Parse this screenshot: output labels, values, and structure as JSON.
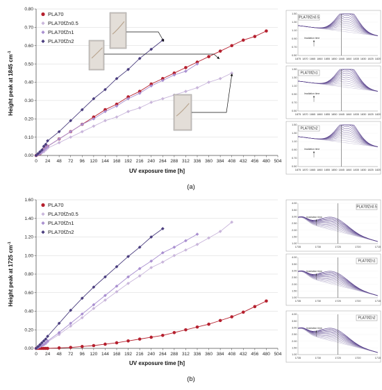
{
  "chart_data": [
    {
      "type": "line",
      "panel_label": "(a)",
      "xlabel": "UV exposure time [h]",
      "ylabel": "Height peak at 1845 cm",
      "ylabel_sup": "-1",
      "xlim": [
        0,
        504
      ],
      "ylim": [
        0,
        0.8
      ],
      "xticks": [
        0,
        24,
        48,
        72,
        96,
        120,
        144,
        168,
        192,
        216,
        240,
        264,
        288,
        312,
        336,
        360,
        384,
        408,
        432,
        456,
        480,
        504
      ],
      "yticks": [
        0.0,
        0.1,
        0.2,
        0.3,
        0.4,
        0.5,
        0.6,
        0.7,
        0.8
      ],
      "ytick_labels": [
        "0.00",
        "0.10",
        "0.20",
        "0.30",
        "0.40",
        "0.50",
        "0.60",
        "0.70",
        "0.80"
      ],
      "legend": "top-left",
      "series": [
        {
          "name": "PLA70",
          "color": "#b5202e",
          "marker": "circle",
          "x": [
            0,
            4,
            8,
            12,
            16,
            20,
            24,
            48,
            72,
            96,
            120,
            144,
            168,
            192,
            216,
            240,
            264,
            288,
            312,
            336,
            360,
            384,
            408,
            432,
            456,
            480
          ],
          "y": [
            0.0,
            0.005,
            0.01,
            0.02,
            0.03,
            0.04,
            0.05,
            0.09,
            0.13,
            0.17,
            0.21,
            0.25,
            0.28,
            0.32,
            0.35,
            0.39,
            0.42,
            0.45,
            0.48,
            0.51,
            0.54,
            0.57,
            0.6,
            0.63,
            0.65,
            0.68
          ]
        },
        {
          "name": "PLA70fZn0.5",
          "color": "#c9b6db",
          "marker": "diamond",
          "x": [
            0,
            4,
            8,
            12,
            16,
            20,
            24,
            48,
            72,
            96,
            120,
            144,
            168,
            192,
            216,
            240,
            264,
            288,
            312,
            336,
            360,
            384,
            408
          ],
          "y": [
            0.0,
            0.005,
            0.01,
            0.015,
            0.02,
            0.03,
            0.04,
            0.07,
            0.1,
            0.13,
            0.16,
            0.19,
            0.21,
            0.24,
            0.26,
            0.29,
            0.31,
            0.33,
            0.35,
            0.37,
            0.4,
            0.42,
            0.45
          ]
        },
        {
          "name": "PLA70fZn1",
          "color": "#a98fd0",
          "marker": "diamond",
          "x": [
            0,
            4,
            8,
            12,
            16,
            20,
            24,
            48,
            72,
            96,
            120,
            144,
            168,
            192,
            216,
            240,
            264,
            288,
            312,
            336
          ],
          "y": [
            0.0,
            0.005,
            0.01,
            0.02,
            0.03,
            0.04,
            0.05,
            0.09,
            0.13,
            0.17,
            0.2,
            0.24,
            0.27,
            0.31,
            0.34,
            0.38,
            0.41,
            0.44,
            0.46,
            0.5
          ]
        },
        {
          "name": "PLA70fZn2",
          "color": "#4a3d7e",
          "marker": "diamond",
          "x": [
            0,
            4,
            8,
            12,
            16,
            20,
            24,
            48,
            72,
            96,
            120,
            144,
            168,
            192,
            216,
            240,
            264
          ],
          "y": [
            0.0,
            0.01,
            0.02,
            0.03,
            0.05,
            0.06,
            0.08,
            0.13,
            0.19,
            0.25,
            0.31,
            0.36,
            0.42,
            0.47,
            0.53,
            0.58,
            0.63
          ]
        }
      ],
      "insets": [
        {
          "label": "PLA70fZn0.5",
          "irradiation": "Irradiation time",
          "yticks": [
            "1.50",
            "1.30",
            "1.10",
            "0.90",
            "0.70",
            "0.50"
          ],
          "xticks": [
            "1875",
            "1870",
            "1865",
            "1860",
            "1855",
            "1850",
            "1845",
            "1840",
            "1835",
            "1830",
            "1825",
            "1820"
          ]
        },
        {
          "label": "PLA70fZn1",
          "irradiation": "Irradiation time",
          "yticks": [
            "1.50",
            "1.30",
            "1.10",
            "0.90",
            "0.70",
            "0.50"
          ],
          "xticks": [
            "1875",
            "1870",
            "1865",
            "1860",
            "1855",
            "1850",
            "1845",
            "1840",
            "1835",
            "1830",
            "1825",
            "1820"
          ]
        },
        {
          "label": "PLA70fZn2",
          "irradiation": "Irradiation time",
          "yticks": [
            "1.50",
            "1.30",
            "1.10",
            "0.90",
            "0.70",
            "0.50"
          ],
          "xticks": [
            "1875",
            "1870",
            "1865",
            "1860",
            "1855",
            "1850",
            "1845",
            "1840",
            "1835",
            "1830",
            "1825",
            "1820"
          ]
        }
      ]
    },
    {
      "type": "line",
      "panel_label": "(b)",
      "xlabel": "UV exposure time [h]",
      "ylabel": "Height peak at 1725 cm",
      "ylabel_sup": "-1",
      "xlim": [
        0,
        504
      ],
      "ylim": [
        0,
        1.6
      ],
      "xticks": [
        0,
        24,
        48,
        72,
        96,
        120,
        144,
        168,
        192,
        216,
        240,
        264,
        288,
        312,
        336,
        360,
        384,
        408,
        432,
        456,
        480,
        504
      ],
      "yticks": [
        0.0,
        0.2,
        0.4,
        0.6,
        0.8,
        1.0,
        1.2,
        1.4,
        1.6
      ],
      "ytick_labels": [
        "0.00",
        "0.20",
        "0.40",
        "0.60",
        "0.80",
        "1.00",
        "1.20",
        "1.40",
        "1.60"
      ],
      "legend": "top-left",
      "series": [
        {
          "name": "PLA70",
          "color": "#b5202e",
          "marker": "circle",
          "x": [
            0,
            4,
            8,
            12,
            16,
            20,
            24,
            48,
            72,
            96,
            120,
            144,
            168,
            192,
            216,
            240,
            264,
            288,
            312,
            336,
            360,
            384,
            408,
            432,
            456,
            480
          ],
          "y": [
            0.0,
            0.0,
            0.0,
            0.0,
            0.0,
            0.0,
            0.0,
            0.005,
            0.01,
            0.02,
            0.03,
            0.045,
            0.06,
            0.08,
            0.1,
            0.12,
            0.14,
            0.17,
            0.2,
            0.23,
            0.26,
            0.3,
            0.34,
            0.39,
            0.45,
            0.51
          ]
        },
        {
          "name": "PLA70fZn0.5",
          "color": "#c9b6db",
          "marker": "diamond",
          "x": [
            0,
            4,
            8,
            12,
            16,
            20,
            24,
            48,
            72,
            96,
            120,
            144,
            168,
            192,
            216,
            240,
            264,
            288,
            312,
            336,
            360,
            384,
            408
          ],
          "y": [
            0.0,
            0.01,
            0.02,
            0.03,
            0.04,
            0.05,
            0.07,
            0.15,
            0.24,
            0.33,
            0.43,
            0.52,
            0.61,
            0.7,
            0.78,
            0.87,
            0.93,
            1.0,
            1.06,
            1.12,
            1.19,
            1.26,
            1.36
          ]
        },
        {
          "name": "PLA70fZn1",
          "color": "#a98fd0",
          "marker": "diamond",
          "x": [
            0,
            4,
            8,
            12,
            16,
            20,
            24,
            48,
            72,
            96,
            120,
            144,
            168,
            192,
            216,
            240,
            264,
            288,
            312,
            336
          ],
          "y": [
            0.0,
            0.01,
            0.02,
            0.03,
            0.04,
            0.06,
            0.08,
            0.17,
            0.27,
            0.37,
            0.47,
            0.57,
            0.67,
            0.77,
            0.86,
            0.94,
            1.03,
            1.09,
            1.16,
            1.23
          ]
        },
        {
          "name": "PLA70fZn2",
          "color": "#4a3d7e",
          "marker": "diamond",
          "x": [
            0,
            4,
            8,
            12,
            16,
            20,
            24,
            48,
            72,
            96,
            120,
            144,
            168,
            192,
            216,
            240,
            264
          ],
          "y": [
            0.0,
            0.02,
            0.04,
            0.06,
            0.08,
            0.1,
            0.13,
            0.27,
            0.41,
            0.54,
            0.66,
            0.77,
            0.88,
            0.99,
            1.09,
            1.2,
            1.29
          ]
        }
      ],
      "insets": [
        {
          "label": "PLA70fZn0.5",
          "irradiation": "Irradiation time",
          "yticks": [
            "4.00",
            "3.50",
            "3.00",
            "2.50",
            "2.00",
            "1.50",
            "1.00"
          ],
          "xticks": [
            "1735",
            "1730",
            "1725",
            "1720",
            "1715"
          ]
        },
        {
          "label": "PLA70fZn1",
          "irradiation": "Irradiation time",
          "yticks": [
            "4.00",
            "3.50",
            "3.00",
            "2.50",
            "2.00",
            "1.50",
            "1.00"
          ],
          "xticks": [
            "1735",
            "1730",
            "1725",
            "1720",
            "1715"
          ]
        },
        {
          "label": "PLA70fZn2",
          "irradiation": "Irradiation time",
          "yticks": [
            "4.00",
            "3.50",
            "3.00",
            "2.50",
            "2.00",
            "1.50",
            "1.00"
          ],
          "xticks": [
            "1735",
            "1730",
            "1725",
            "1720",
            "1715"
          ]
        }
      ]
    }
  ]
}
